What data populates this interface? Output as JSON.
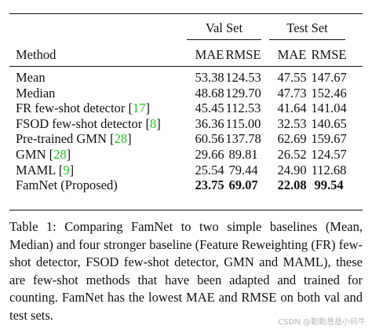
{
  "table": {
    "group_headers": [
      "Val Set",
      "Test Set"
    ],
    "columns": [
      "Method",
      "MAE",
      "RMSE",
      "MAE",
      "RMSE"
    ],
    "rows": [
      {
        "method": "Mean",
        "cells": [
          "53.38",
          "124.53",
          "47.55",
          "147.67"
        ]
      },
      {
        "method": "Median",
        "cells": [
          "48.68",
          "129.70",
          "47.73",
          "152.46"
        ]
      },
      {
        "method": "FR few-shot detector",
        "citation": "[17]",
        "cells": [
          "45.45",
          "112.53",
          "41.64",
          "141.04"
        ]
      },
      {
        "method": "FSOD few-shot detector",
        "citation": "[8]",
        "cells": [
          "36.36",
          "115.00",
          "32.53",
          "140.65"
        ]
      },
      {
        "method": "Pre-trained GMN",
        "citation": "[28]",
        "cells": [
          "60.56",
          "137.78",
          "62.69",
          "159.67"
        ]
      },
      {
        "method": "GMN",
        "citation": "[28]",
        "cells": [
          "29.66",
          "89.81",
          "26.52",
          "124.57"
        ]
      },
      {
        "method": "MAML",
        "citation": "[9]",
        "cells": [
          "25.54",
          "79.44",
          "24.90",
          "112.68"
        ]
      },
      {
        "method": "FamNet (Proposed)",
        "cells": [
          "23.75",
          "69.07",
          "22.08",
          "99.54"
        ],
        "bold": true
      }
    ]
  },
  "caption": {
    "label": "Table 1:",
    "text": "Comparing FamNet to two simple baselines (Mean, Median) and four stronger baseline (Feature Reweighting (FR) few-shot detector, FSOD few-shot detector, GMN and MAML), these are few-shot methods that have been adapted and trained for counting. FamNet has the lowest MAE and RMSE on both val and test sets."
  },
  "watermark": "CSDN @勤勤恳恳小码牛"
}
